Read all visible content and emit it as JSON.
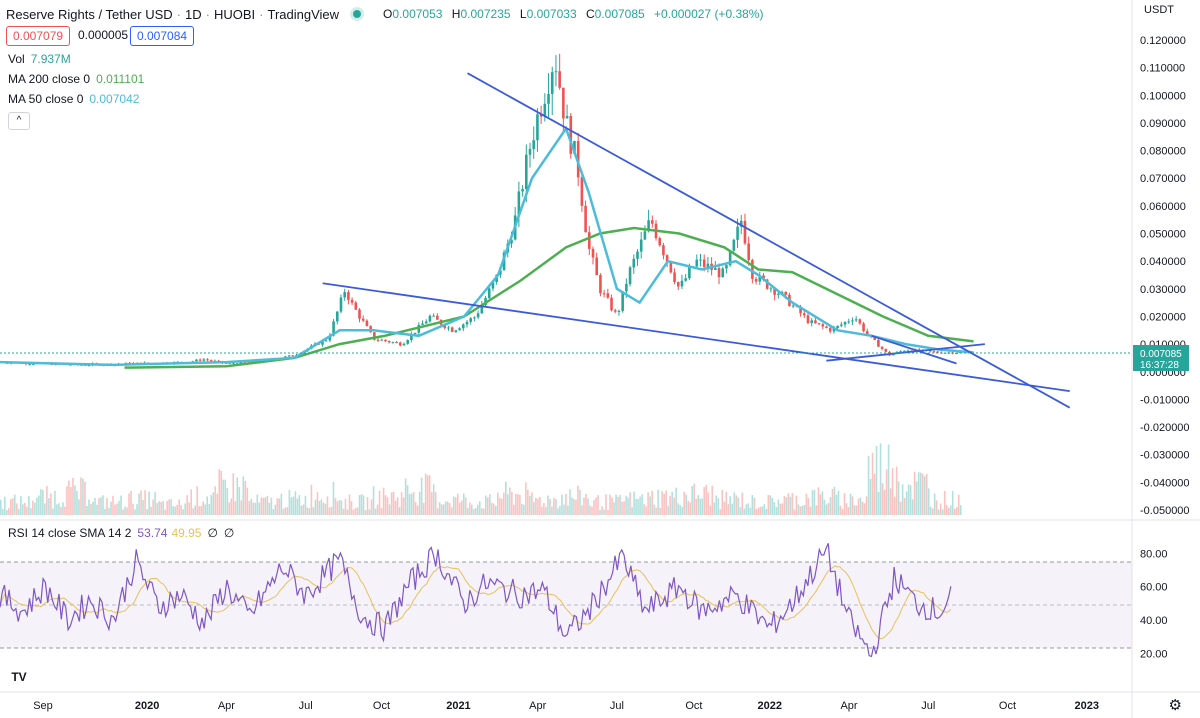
{
  "header": {
    "symbol": "Reserve Rights / Tether USD",
    "interval": "1D",
    "exchange": "HUOBI",
    "source": "TradingView",
    "open_label": "O",
    "open": "0.007053",
    "high_label": "H",
    "high": "0.007235",
    "low_label": "L",
    "low": "0.007033",
    "close_label": "C",
    "close": "0.007085",
    "change": "+0.000027 (+0.38%)",
    "separator": "·"
  },
  "quote": {
    "bid": "0.007079",
    "spread": "0.000005",
    "ask": "0.007084"
  },
  "legend": {
    "vol_label": "Vol",
    "vol_value": "7.937M",
    "ma200_label": "MA 200 close 0",
    "ma200_value": "0.011101",
    "ma50_label": "MA 50 close 0",
    "ma50_value": "0.007042",
    "collapse_icon": "^"
  },
  "rsi_legend": {
    "label": "RSI 14 close SMA 14 2",
    "rsi": "53.74",
    "sma": "49.95",
    "extra1": "∅",
    "extra2": "∅"
  },
  "currency": "USDT",
  "last_price": {
    "value": "0.007085",
    "countdown": "16:37:28"
  },
  "colors": {
    "up": "#26a69a",
    "down": "#ef5350",
    "ma50": "#4bbcd9",
    "ma200": "#4caf50",
    "trendline": "#3b5bdb",
    "rsi": "#7e57c2",
    "rsi_sma": "#e8c15a"
  },
  "icons": {
    "logo": "tradingview-logo-icon",
    "settings": "gear-icon",
    "live": "live-dot-icon"
  },
  "logo_text": "TV",
  "gear_glyph": "⚙",
  "chart_data": {
    "type": "candlestick",
    "x_ticks": [
      "Sep",
      "2020",
      "Apr",
      "Jul",
      "Oct",
      "2021",
      "Apr",
      "Jul",
      "Oct",
      "2022",
      "Apr",
      "Jul",
      "Oct",
      "2023"
    ],
    "y_ticks": [
      "0.120000",
      "0.110000",
      "0.100000",
      "0.090000",
      "0.080000",
      "0.070000",
      "0.060000",
      "0.050000",
      "0.040000",
      "0.030000",
      "0.020000",
      "0.010000",
      "0.000000",
      "-0.010000",
      "-0.020000",
      "-0.030000",
      "-0.040000",
      "-0.050000"
    ],
    "y_tick_values": [
      0.12,
      0.11,
      0.1,
      0.09,
      0.08,
      0.07,
      0.06,
      0.05,
      0.04,
      0.03,
      0.02,
      0.01,
      0.0,
      -0.01,
      -0.02,
      -0.03,
      -0.04,
      -0.05
    ],
    "ylim": [
      -0.05,
      0.12
    ],
    "price_path": [
      [
        0,
        0.0035
      ],
      [
        0.03,
        0.003
      ],
      [
        0.07,
        0.0025
      ],
      [
        0.12,
        0.003
      ],
      [
        0.165,
        0.0035
      ],
      [
        0.18,
        0.0045
      ],
      [
        0.2,
        0.003
      ],
      [
        0.23,
        0.0035
      ],
      [
        0.26,
        0.006
      ],
      [
        0.29,
        0.012
      ],
      [
        0.305,
        0.03
      ],
      [
        0.31,
        0.025
      ],
      [
        0.33,
        0.012
      ],
      [
        0.355,
        0.01
      ],
      [
        0.38,
        0.02
      ],
      [
        0.4,
        0.015
      ],
      [
        0.42,
        0.02
      ],
      [
        0.44,
        0.035
      ],
      [
        0.455,
        0.055
      ],
      [
        0.47,
        0.085
      ],
      [
        0.48,
        0.1
      ],
      [
        0.49,
        0.115
      ],
      [
        0.5,
        0.09
      ],
      [
        0.51,
        0.075
      ],
      [
        0.52,
        0.045
      ],
      [
        0.53,
        0.03
      ],
      [
        0.545,
        0.02
      ],
      [
        0.555,
        0.035
      ],
      [
        0.575,
        0.055
      ],
      [
        0.585,
        0.045
      ],
      [
        0.6,
        0.03
      ],
      [
        0.615,
        0.04
      ],
      [
        0.64,
        0.035
      ],
      [
        0.655,
        0.055
      ],
      [
        0.665,
        0.035
      ],
      [
        0.69,
        0.028
      ],
      [
        0.715,
        0.018
      ],
      [
        0.735,
        0.015
      ],
      [
        0.755,
        0.02
      ],
      [
        0.765,
        0.014
      ],
      [
        0.785,
        0.006
      ],
      [
        0.8,
        0.008
      ],
      [
        0.83,
        0.007
      ],
      [
        0.86,
        0.007
      ]
    ],
    "ma50_path": [
      [
        0,
        0.0035
      ],
      [
        0.1,
        0.0025
      ],
      [
        0.2,
        0.0035
      ],
      [
        0.26,
        0.005
      ],
      [
        0.3,
        0.015
      ],
      [
        0.33,
        0.015
      ],
      [
        0.37,
        0.013
      ],
      [
        0.41,
        0.02
      ],
      [
        0.44,
        0.035
      ],
      [
        0.47,
        0.07
      ],
      [
        0.5,
        0.088
      ],
      [
        0.52,
        0.065
      ],
      [
        0.545,
        0.03
      ],
      [
        0.565,
        0.025
      ],
      [
        0.59,
        0.04
      ],
      [
        0.62,
        0.037
      ],
      [
        0.65,
        0.04
      ],
      [
        0.67,
        0.035
      ],
      [
        0.7,
        0.025
      ],
      [
        0.74,
        0.015
      ],
      [
        0.77,
        0.013
      ],
      [
        0.8,
        0.01
      ],
      [
        0.83,
        0.008
      ],
      [
        0.86,
        0.007
      ]
    ],
    "ma200_path": [
      [
        0.11,
        0.0015
      ],
      [
        0.2,
        0.002
      ],
      [
        0.26,
        0.005
      ],
      [
        0.3,
        0.01
      ],
      [
        0.34,
        0.013
      ],
      [
        0.41,
        0.02
      ],
      [
        0.46,
        0.033
      ],
      [
        0.5,
        0.045
      ],
      [
        0.53,
        0.05
      ],
      [
        0.56,
        0.052
      ],
      [
        0.6,
        0.05
      ],
      [
        0.64,
        0.045
      ],
      [
        0.67,
        0.037
      ],
      [
        0.7,
        0.036
      ],
      [
        0.74,
        0.028
      ],
      [
        0.78,
        0.02
      ],
      [
        0.82,
        0.013
      ],
      [
        0.86,
        0.011
      ]
    ],
    "trendlines": [
      {
        "name": "upper-resistance",
        "p1": [
          0.413,
          0.108
        ],
        "p2": [
          0.945,
          -0.013
        ]
      },
      {
        "name": "lower-support",
        "p1": [
          0.285,
          0.032
        ],
        "p2": [
          0.945,
          -0.007
        ]
      },
      {
        "name": "wedge-top",
        "p1": [
          0.77,
          0.013
        ],
        "p2": [
          0.845,
          0.003
        ]
      },
      {
        "name": "wedge-bottom",
        "p1": [
          0.73,
          0.004
        ],
        "p2": [
          0.87,
          0.01
        ]
      }
    ],
    "volume_profile": [
      0.25,
      0.35,
      0.45,
      0.25,
      0.3,
      0.2,
      0.35,
      0.55,
      0.25,
      0.3,
      0.4,
      0.25,
      0.35,
      0.5,
      0.3,
      0.25,
      0.4,
      0.3,
      0.35,
      0.25,
      0.3,
      0.35,
      0.4,
      0.3,
      0.25,
      0.3,
      0.35,
      0.3,
      0.95,
      0.6,
      0.3
    ],
    "rsi": {
      "y_ticks": [
        "80.00",
        "60.00",
        "40.00",
        "20.00"
      ],
      "y_tick_values": [
        80,
        60,
        40,
        20
      ],
      "ylim": [
        10,
        88
      ],
      "overbought": 70,
      "middle": 50,
      "oversold": 30,
      "path": [
        [
          0,
          55
        ],
        [
          0.02,
          45
        ],
        [
          0.04,
          60
        ],
        [
          0.06,
          40
        ],
        [
          0.08,
          52
        ],
        [
          0.1,
          40
        ],
        [
          0.12,
          75
        ],
        [
          0.14,
          48
        ],
        [
          0.16,
          55
        ],
        [
          0.18,
          38
        ],
        [
          0.2,
          60
        ],
        [
          0.22,
          42
        ],
        [
          0.25,
          72
        ],
        [
          0.27,
          55
        ],
        [
          0.3,
          76
        ],
        [
          0.32,
          42
        ],
        [
          0.34,
          35
        ],
        [
          0.36,
          60
        ],
        [
          0.385,
          80
        ],
        [
          0.41,
          50
        ],
        [
          0.43,
          62
        ],
        [
          0.46,
          55
        ],
        [
          0.48,
          58
        ],
        [
          0.5,
          30
        ],
        [
          0.52,
          45
        ],
        [
          0.55,
          78
        ],
        [
          0.57,
          45
        ],
        [
          0.6,
          60
        ],
        [
          0.62,
          45
        ],
        [
          0.65,
          55
        ],
        [
          0.68,
          35
        ],
        [
          0.7,
          50
        ],
        [
          0.73,
          82
        ],
        [
          0.75,
          40
        ],
        [
          0.77,
          18
        ],
        [
          0.79,
          65
        ],
        [
          0.81,
          50
        ],
        [
          0.83,
          45
        ],
        [
          0.84,
          53
        ]
      ]
    }
  }
}
